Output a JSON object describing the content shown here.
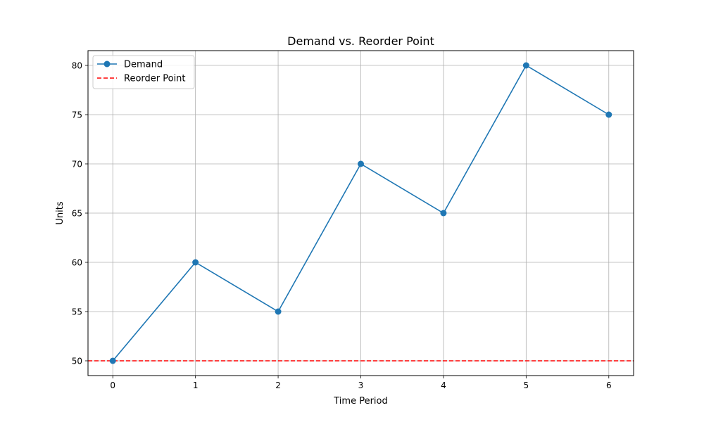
{
  "chart_data": {
    "type": "line",
    "title": "Demand vs. Reorder Point",
    "xlabel": "Time Period",
    "ylabel": "Units",
    "x": [
      0,
      1,
      2,
      3,
      4,
      5,
      6
    ],
    "xlim": [
      -0.3,
      6.3
    ],
    "ylim": [
      48.5,
      81.5
    ],
    "xticks": [
      0,
      1,
      2,
      3,
      4,
      5,
      6
    ],
    "yticks": [
      50,
      55,
      60,
      65,
      70,
      75,
      80
    ],
    "grid": true,
    "legend_position": "top-left",
    "series": [
      {
        "name": "Demand",
        "values": [
          50,
          60,
          55,
          70,
          65,
          80,
          75
        ],
        "color": "#1f77b4",
        "style": "solid",
        "marker": "circle"
      }
    ],
    "reference_lines": [
      {
        "name": "Reorder Point",
        "y": 50,
        "color": "#ff0000",
        "style": "dashed"
      }
    ]
  }
}
